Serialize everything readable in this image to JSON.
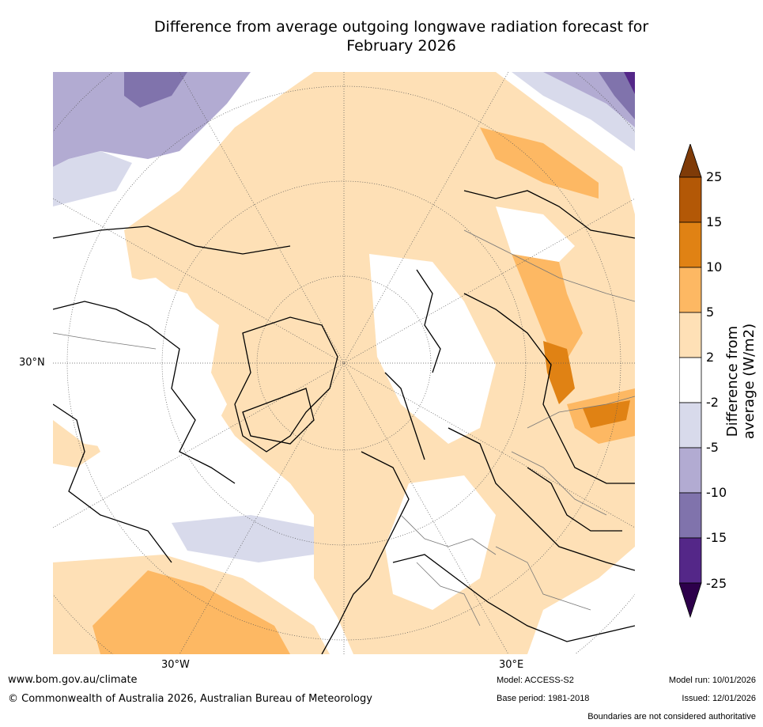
{
  "title_line1": "Difference from average outgoing longwave radiation forecast for",
  "title_line2": "February 2026",
  "axis_labels": {
    "lat30": "30°N",
    "lon_w": "30°W",
    "lon_e": "30°E"
  },
  "colorbar": {
    "title": "Difference from average (W/m2)",
    "ticks": [
      "25",
      "15",
      "10",
      "5",
      "2",
      "-2",
      "-5",
      "-10",
      "-15",
      "-25"
    ],
    "colors": {
      "above25": "#7f3b08",
      "c15_25": "#b35806",
      "c10_15": "#e08214",
      "c5_10": "#fdb863",
      "c2_5": "#fee0b6",
      "neutral": "#ffffff",
      "cm2_m5": "#d8daeb",
      "cm5_m10": "#b2abd2",
      "cm10_m15": "#8073ac",
      "cm15_m25": "#542788",
      "below_m25": "#2d004b"
    }
  },
  "footer": {
    "website": "www.bom.gov.au/climate",
    "copyright": "© Commonwealth of Australia 2026, Australian Bureau of Meteorology",
    "model": "Model: ACCESS-S2",
    "base_period": "Base period: 1981-2018",
    "model_run": "Model run: 10/01/2026",
    "issued": "Issued: 12/01/2026",
    "disclaimer": "Boundaries are not considered authoritative"
  }
}
